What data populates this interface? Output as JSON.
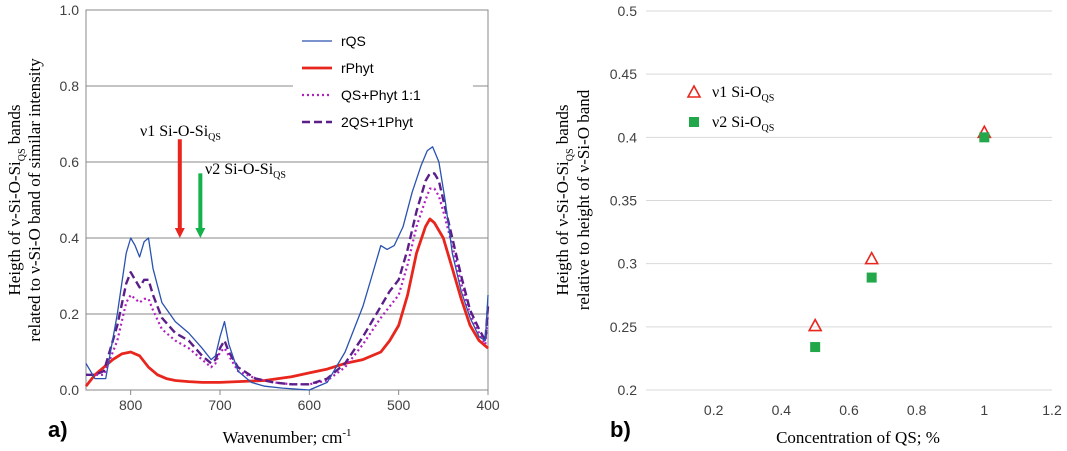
{
  "chart_data": [
    {
      "panel_label": "a)",
      "type": "line",
      "xlabel": "Wavenumber; cm",
      "xlabel_sup": "-1",
      "ylabel_line1": {
        "a": "Heigth of ν-Si-O-Si",
        "sub": "QS",
        "b": " bands"
      },
      "ylabel_line2": "related to ν-Si-O band of similar intensity",
      "xlim": [
        850,
        400
      ],
      "ylim": [
        0,
        1.0
      ],
      "x_ticks": [
        800,
        700,
        600,
        500,
        400
      ],
      "x_tick_labels": [
        "800",
        "700",
        "600",
        "500",
        "400"
      ],
      "y_ticks": [
        0,
        0.2,
        0.4,
        0.6,
        0.8,
        1.0
      ],
      "y_tick_labels": [
        "0.0",
        "0.2",
        "0.4",
        "0.6",
        "0.8",
        "1.0"
      ],
      "grid": "horizontal",
      "legend_position": "top-right",
      "annotations": [
        {
          "text": "ν1 Si-O-Si",
          "sub": "QS",
          "x": 745,
          "arrow_top": 0.66,
          "arrow_bottom": 0.4,
          "color": "#e8261d"
        },
        {
          "text": "ν2 Si-O-Si",
          "sub": "QS",
          "x": 722,
          "arrow_top": 0.57,
          "arrow_bottom": 0.4,
          "color": "#14b24a"
        }
      ],
      "series": [
        {
          "name": "rQS",
          "color": "#2a52b0",
          "dash": "solid",
          "x": [
            850,
            840,
            828,
            815,
            805,
            800,
            795,
            790,
            785,
            780,
            775,
            765,
            750,
            735,
            720,
            710,
            705,
            700,
            695,
            690,
            680,
            665,
            650,
            630,
            600,
            580,
            560,
            540,
            530,
            520,
            513,
            505,
            495,
            485,
            475,
            468,
            462,
            455,
            448,
            440,
            430,
            420,
            410,
            403,
            400
          ],
          "y": [
            0.07,
            0.03,
            0.03,
            0.2,
            0.36,
            0.4,
            0.38,
            0.35,
            0.39,
            0.4,
            0.32,
            0.23,
            0.18,
            0.15,
            0.11,
            0.08,
            0.09,
            0.14,
            0.18,
            0.12,
            0.05,
            0.02,
            0.01,
            0.005,
            0.0,
            0.02,
            0.1,
            0.22,
            0.3,
            0.38,
            0.37,
            0.38,
            0.43,
            0.52,
            0.59,
            0.63,
            0.64,
            0.6,
            0.5,
            0.36,
            0.26,
            0.19,
            0.14,
            0.13,
            0.25
          ]
        },
        {
          "name": "rPhyt",
          "color": "#e8261d",
          "dash": "solid",
          "x": [
            850,
            840,
            830,
            820,
            810,
            800,
            790,
            780,
            770,
            760,
            750,
            735,
            720,
            700,
            680,
            650,
            620,
            600,
            580,
            560,
            540,
            520,
            510,
            500,
            490,
            480,
            470,
            465,
            460,
            450,
            440,
            430,
            420,
            410,
            400
          ],
          "y": [
            0.01,
            0.04,
            0.06,
            0.08,
            0.095,
            0.1,
            0.09,
            0.06,
            0.04,
            0.03,
            0.025,
            0.022,
            0.02,
            0.02,
            0.022,
            0.025,
            0.035,
            0.045,
            0.055,
            0.07,
            0.08,
            0.1,
            0.13,
            0.17,
            0.25,
            0.36,
            0.43,
            0.45,
            0.44,
            0.4,
            0.32,
            0.24,
            0.17,
            0.13,
            0.11
          ]
        },
        {
          "name": "QS+Phyt 1:1",
          "color": "#b11fc0",
          "dash": "dotted",
          "x": [
            850,
            840,
            830,
            815,
            805,
            800,
            795,
            790,
            785,
            780,
            775,
            765,
            750,
            735,
            720,
            710,
            705,
            700,
            695,
            690,
            680,
            660,
            640,
            620,
            600,
            580,
            560,
            540,
            520,
            510,
            500,
            490,
            480,
            470,
            465,
            460,
            455,
            450,
            440,
            430,
            420,
            410,
            403,
            400
          ],
          "y": [
            0.04,
            0.04,
            0.04,
            0.13,
            0.23,
            0.25,
            0.24,
            0.23,
            0.24,
            0.24,
            0.21,
            0.16,
            0.13,
            0.11,
            0.08,
            0.06,
            0.07,
            0.1,
            0.11,
            0.09,
            0.05,
            0.03,
            0.02,
            0.015,
            0.015,
            0.025,
            0.06,
            0.12,
            0.19,
            0.22,
            0.25,
            0.33,
            0.43,
            0.5,
            0.53,
            0.53,
            0.51,
            0.47,
            0.38,
            0.28,
            0.2,
            0.15,
            0.12,
            0.2
          ]
        },
        {
          "name": "2QS+1Phyt",
          "color": "#5b1f8a",
          "dash": "dashed",
          "x": [
            850,
            840,
            830,
            815,
            805,
            800,
            795,
            790,
            785,
            780,
            775,
            765,
            750,
            735,
            720,
            710,
            705,
            700,
            695,
            690,
            680,
            660,
            640,
            620,
            600,
            580,
            560,
            540,
            520,
            510,
            500,
            490,
            480,
            470,
            465,
            460,
            455,
            450,
            440,
            430,
            420,
            410,
            403,
            400
          ],
          "y": [
            0.04,
            0.04,
            0.05,
            0.17,
            0.28,
            0.31,
            0.29,
            0.27,
            0.29,
            0.29,
            0.25,
            0.19,
            0.15,
            0.13,
            0.09,
            0.07,
            0.08,
            0.11,
            0.13,
            0.1,
            0.06,
            0.03,
            0.02,
            0.015,
            0.015,
            0.03,
            0.07,
            0.14,
            0.22,
            0.26,
            0.29,
            0.37,
            0.47,
            0.55,
            0.57,
            0.57,
            0.55,
            0.5,
            0.4,
            0.3,
            0.21,
            0.16,
            0.13,
            0.22
          ]
        }
      ]
    },
    {
      "panel_label": "b)",
      "type": "scatter",
      "xlabel": "Concentration of QS; %",
      "ylabel_line1": {
        "a": "Heigth of ν-Si-O-Si",
        "sub": "QS",
        "b": " bands"
      },
      "ylabel_line2": "relative to height of ν-Si-O band",
      "xlim": [
        0,
        1.2
      ],
      "ylim": [
        0.2,
        0.5
      ],
      "x_ticks": [
        0.2,
        0.4,
        0.6,
        0.8,
        1.0,
        1.2
      ],
      "x_tick_labels": [
        "0.2",
        "0.4",
        "0.6",
        "0.8",
        "1",
        "1.2"
      ],
      "y_ticks": [
        0.2,
        0.25,
        0.3,
        0.35,
        0.4,
        0.45,
        0.5
      ],
      "y_tick_labels": [
        "0.2",
        "0.25",
        "0.3",
        "0.35",
        "0.4",
        "0.45",
        "0.5"
      ],
      "grid": "horizontal",
      "legend_position": "top-left",
      "series": [
        {
          "name": "ν1 Si-O",
          "sub": "QS",
          "marker": "triangle-open",
          "color": "#e8261d",
          "x": [
            0.5,
            0.667,
            1.0
          ],
          "y": [
            0.251,
            0.304,
            0.404
          ]
        },
        {
          "name": "ν2 Si-O",
          "sub": "QS",
          "marker": "square-filled",
          "color": "#22a84a",
          "x": [
            0.5,
            0.667,
            1.0
          ],
          "y": [
            0.234,
            0.289,
            0.4
          ]
        }
      ]
    }
  ]
}
